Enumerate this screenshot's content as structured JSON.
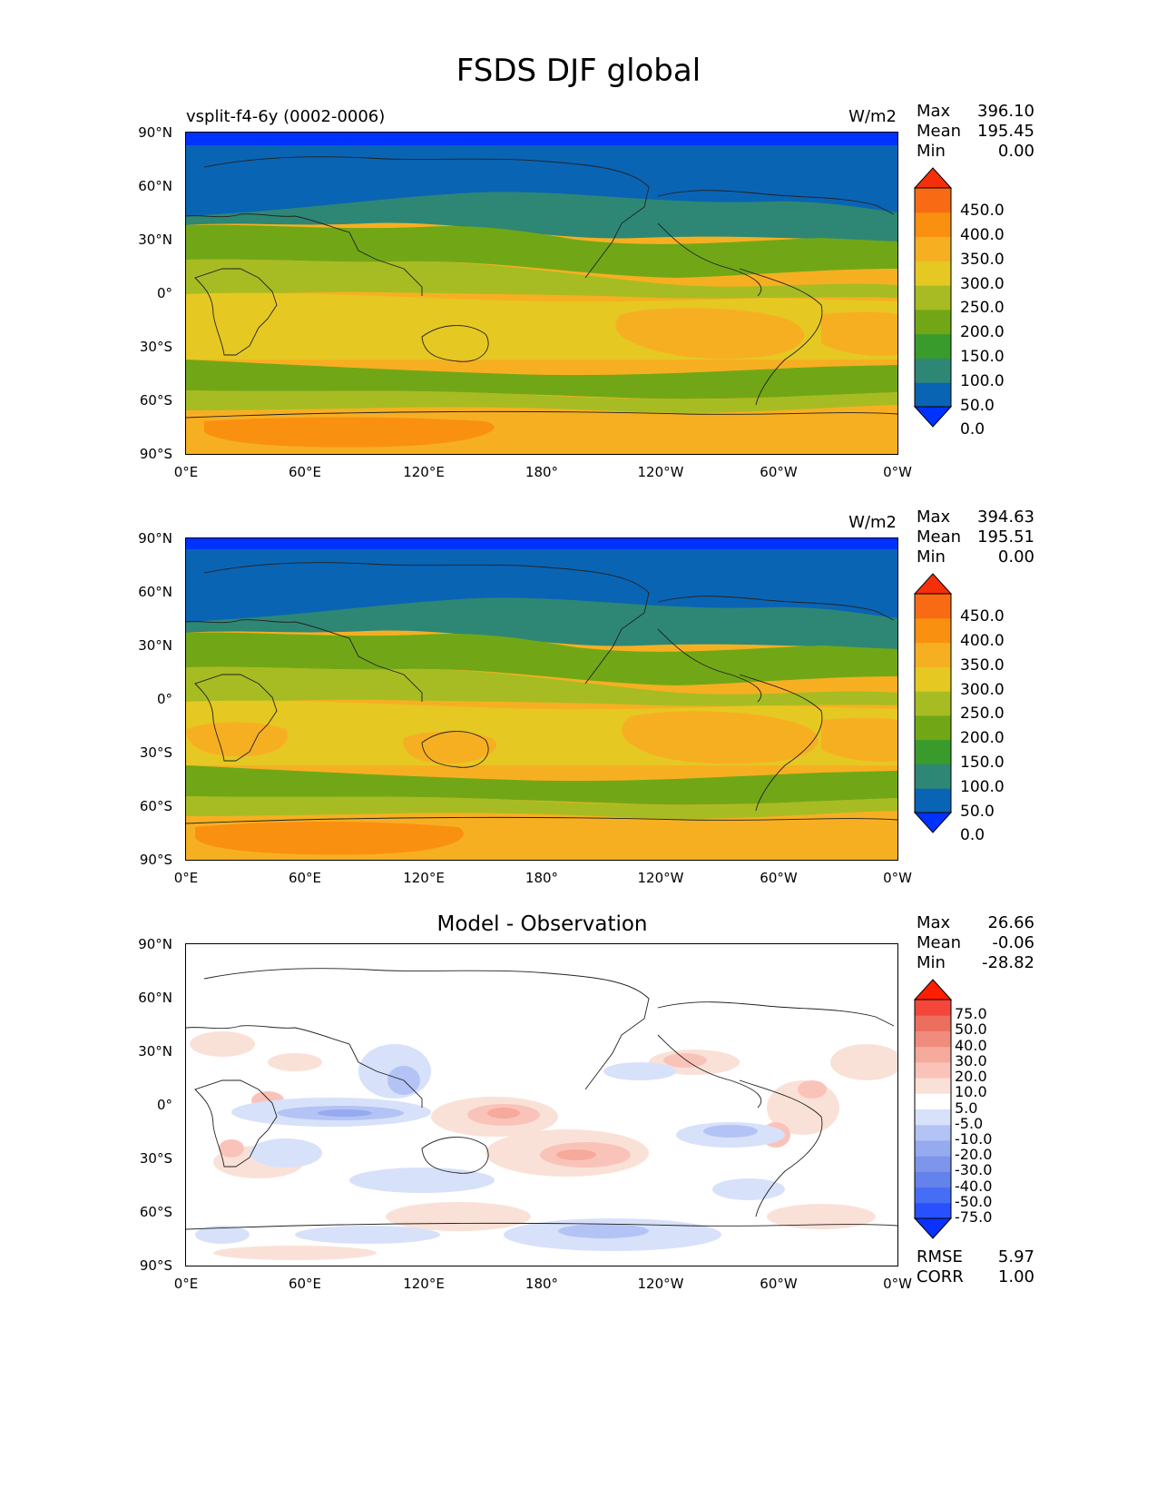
{
  "figure": {
    "title": "FSDS DJF global"
  },
  "axes": {
    "lat_ticks": [
      "90°N",
      "60°N",
      "30°N",
      "0°",
      "30°S",
      "60°S",
      "90°S"
    ],
    "lon_ticks": [
      "0°E",
      "60°E",
      "120°E",
      "180°",
      "120°W",
      "60°W",
      "0°W"
    ]
  },
  "panels": [
    {
      "id": "test",
      "left_title": "vsplit-f4-6y (0002-0006)",
      "center_title": "",
      "units": "W/m2",
      "stats": {
        "max_label": "Max",
        "max": "396.10",
        "mean_label": "Mean",
        "mean": "195.45",
        "min_label": "Min",
        "min": "0.00"
      },
      "colorbar": {
        "labels": [
          "450.0",
          "400.0",
          "350.0",
          "300.0",
          "250.0",
          "200.0",
          "150.0",
          "100.0",
          "50.0",
          "0.0"
        ],
        "colors": [
          "#0032ff",
          "#0a64b4",
          "#2d8774",
          "#399b2b",
          "#71a716",
          "#a7bc22",
          "#e6c823",
          "#f7af22",
          "#fa9010",
          "#f86b14",
          "#f52f0a"
        ]
      }
    },
    {
      "id": "reference",
      "left_title": "",
      "center_title": "",
      "units": "W/m2",
      "stats": {
        "max_label": "Max",
        "max": "394.63",
        "mean_label": "Mean",
        "mean": "195.51",
        "min_label": "Min",
        "min": "0.00"
      },
      "colorbar": {
        "labels": [
          "450.0",
          "400.0",
          "350.0",
          "300.0",
          "250.0",
          "200.0",
          "150.0",
          "100.0",
          "50.0",
          "0.0"
        ],
        "colors": [
          "#0032ff",
          "#0a64b4",
          "#2d8774",
          "#399b2b",
          "#71a716",
          "#a7bc22",
          "#e6c823",
          "#f7af22",
          "#fa9010",
          "#f86b14",
          "#f52f0a"
        ]
      }
    },
    {
      "id": "difference",
      "left_title": "",
      "center_title": "Model - Observation",
      "units": "",
      "stats": {
        "max_label": "Max",
        "max": "26.66",
        "mean_label": "Mean",
        "mean": "-0.06",
        "min_label": "Min",
        "min": "-28.82"
      },
      "colorbar": {
        "labels": [
          "75.0",
          "50.0",
          "40.0",
          "30.0",
          "20.0",
          "10.0",
          "5.0",
          "-5.0",
          "-10.0",
          "-20.0",
          "-30.0",
          "-40.0",
          "-50.0",
          "-75.0"
        ],
        "colors": [
          "#0a32ff",
          "#2850ff",
          "#466ef5",
          "#6482eb",
          "#7d96ec",
          "#96aaf0",
          "#b4c3f5",
          "#d7e1fa",
          "#ffffff",
          "#fae1d7",
          "#fac3b9",
          "#f5aa9b",
          "#f08c7d",
          "#eb6e5f",
          "#f5463c",
          "#ff1e00"
        ]
      },
      "rmse_label": "RMSE",
      "rmse": "5.97",
      "corr_label": "CORR",
      "corr": "1.00"
    }
  ]
}
